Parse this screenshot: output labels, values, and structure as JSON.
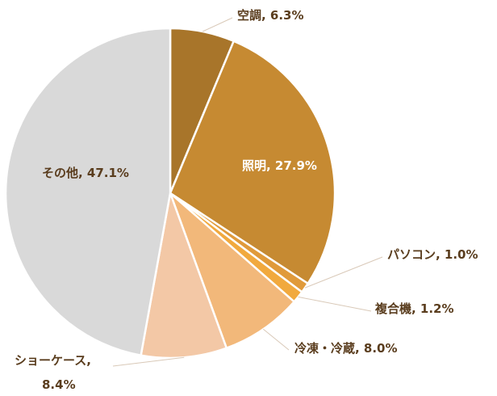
{
  "chart_data": {
    "type": "pie",
    "start_angle_deg": 0,
    "direction": "clockwise",
    "series": [
      {
        "label": "空調",
        "value": 6.3,
        "display": "空調, 6.3%",
        "color": "#a8752a"
      },
      {
        "label": "照明",
        "value": 27.9,
        "display": "照明, 27.9%",
        "color": "#c68a32"
      },
      {
        "label": "パソコン",
        "value": 1.0,
        "display": "パソコン, 1.0%",
        "color": "#e09a3a"
      },
      {
        "label": "複合機",
        "value": 1.2,
        "display": "複合機, 1.2%",
        "color": "#f1a93e"
      },
      {
        "label": "冷凍・冷蔵",
        "value": 8.0,
        "display": "冷凍・冷蔵, 8.0%",
        "color": "#f2b87a"
      },
      {
        "label": "ショーケース",
        "value": 8.4,
        "display_lines": [
          "ショーケース,",
          "8.4%"
        ],
        "color": "#f3c8a6"
      },
      {
        "label": "その他",
        "value": 47.1,
        "display": "その他, 47.1%",
        "color": "#d9d9d9"
      }
    ]
  }
}
